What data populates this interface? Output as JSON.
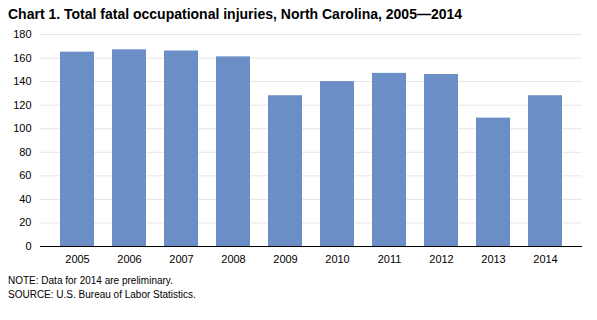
{
  "chart_data": {
    "type": "bar",
    "title": "Chart 1. Total fatal occupational injuries, North Carolina, 2005—2014",
    "categories": [
      "2005",
      "2006",
      "2007",
      "2008",
      "2009",
      "2010",
      "2011",
      "2012",
      "2013",
      "2014"
    ],
    "values": [
      165,
      167,
      166,
      161,
      128,
      140,
      147,
      146,
      109,
      128
    ],
    "color": "#6b8ec7",
    "ylim": [
      0,
      180
    ],
    "yticks": [
      0,
      20,
      40,
      60,
      80,
      100,
      120,
      140,
      160,
      180
    ],
    "grid": true,
    "annotations": [
      "NOTE: Data for 2014 are preliminary.",
      "SOURCE: U.S. Bureau of Labor Statistics."
    ]
  }
}
